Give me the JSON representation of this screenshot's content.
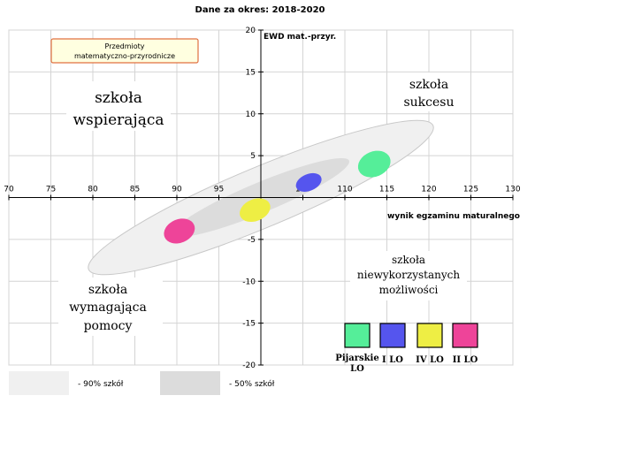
{
  "header": {
    "period_label": "Dane za okres: 2018-2020"
  },
  "subject_box": {
    "line1": "Przedmioty",
    "line2": "matematyczno-przyrodnicze"
  },
  "quadrants": {
    "top_left": [
      "szkoła",
      "wspierająca"
    ],
    "top_right": [
      "szkoła",
      "sukcesu"
    ],
    "bottom_left": [
      "szkoła",
      "wymagająca",
      "pomocy"
    ],
    "bottom_right": [
      "szkoła",
      "niewykorzystanych",
      "możliwości"
    ]
  },
  "chart_data": {
    "type": "scatter",
    "title": "Dane za okres: 2018-2020",
    "xlabel": "wynik egzaminu maturalnego",
    "ylabel": "EWD mat.-przyr.",
    "xlim": [
      70,
      130
    ],
    "ylim": [
      -20,
      20
    ],
    "x_ticks": [
      70,
      75,
      80,
      85,
      90,
      95,
      100,
      105,
      110,
      115,
      120,
      125,
      130
    ],
    "x_tick_labels": [
      "70",
      "75",
      "80",
      "85",
      "90",
      "95",
      "",
      "105",
      "110",
      "115",
      "120",
      "125",
      "130"
    ],
    "y_ticks": [
      20,
      15,
      10,
      5,
      0,
      -5,
      -10,
      -15,
      -20
    ],
    "y_tick_labels": [
      "20",
      "15",
      "10",
      "5",
      "",
      "-5",
      "-10",
      "-15",
      "-20"
    ],
    "grid": true,
    "bands": [
      {
        "label": "- 90% szkół",
        "color": "#f0f0f0",
        "center": [
          100,
          0
        ],
        "half_length_x": 20.5,
        "half_width": 3.6
      },
      {
        "label": "- 50% szkół",
        "color": "#dcdcdc",
        "center": [
          100,
          0
        ],
        "half_length_x": 10.5,
        "half_width": 1.8
      }
    ],
    "series": [
      {
        "name": "Pijarskie LO",
        "color": "#55ee99",
        "x": 113.5,
        "y": 4.0,
        "x_radius": 2.0,
        "y_radius": 1.5
      },
      {
        "name": "I LO",
        "color": "#5555ee",
        "x": 105.7,
        "y": 1.8,
        "x_radius": 1.6,
        "y_radius": 1.0
      },
      {
        "name": "IV LO",
        "color": "#eeee44",
        "x": 99.3,
        "y": -1.5,
        "x_radius": 1.9,
        "y_radius": 1.3
      },
      {
        "name": "II LO",
        "color": "#ee4499",
        "x": 90.3,
        "y": -4.0,
        "x_radius": 1.9,
        "y_radius": 1.4
      }
    ]
  }
}
